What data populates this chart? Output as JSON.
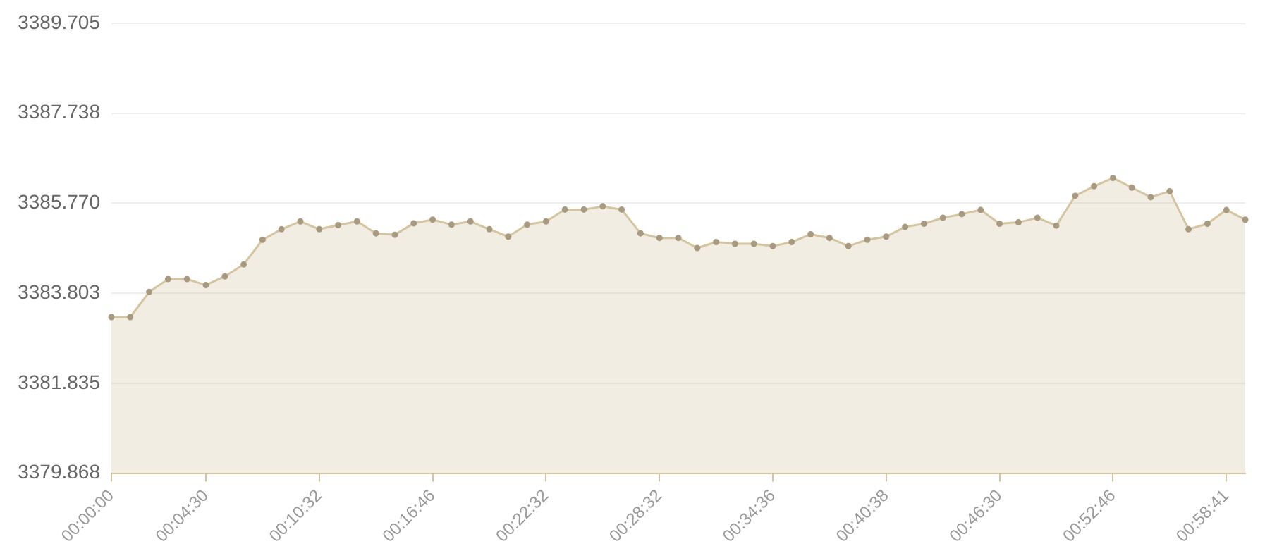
{
  "chart_data": {
    "type": "area",
    "categories": [
      "00:00:00",
      null,
      null,
      null,
      null,
      "00:04:30",
      null,
      null,
      null,
      null,
      null,
      "00:10:32",
      null,
      null,
      null,
      null,
      null,
      "00:16:46",
      null,
      null,
      null,
      null,
      null,
      "00:22:32",
      null,
      null,
      null,
      null,
      null,
      "00:28:32",
      null,
      null,
      null,
      null,
      null,
      "00:34:36",
      null,
      null,
      null,
      null,
      null,
      "00:40:38",
      null,
      null,
      null,
      null,
      null,
      "00:46:30",
      null,
      null,
      null,
      null,
      null,
      "00:52:46",
      null,
      null,
      null,
      null,
      null,
      "00:58:41",
      null
    ],
    "series": [
      {
        "color": "#d4c4a0",
        "values": [
          3383.28,
          3383.28,
          3383.83,
          3384.11,
          3384.11,
          3383.98,
          3384.17,
          3384.43,
          3384.97,
          3385.2,
          3385.37,
          3385.2,
          3385.29,
          3385.37,
          3385.11,
          3385.08,
          3385.33,
          3385.41,
          3385.3,
          3385.37,
          3385.2,
          3385.04,
          3385.3,
          3385.37,
          3385.63,
          3385.63,
          3385.7,
          3385.63,
          3385.11,
          3385.01,
          3385.01,
          3384.79,
          3384.92,
          3384.88,
          3384.88,
          3384.83,
          3384.92,
          3385.09,
          3385.01,
          3384.83,
          3384.97,
          3385.04,
          3385.25,
          3385.32,
          3385.45,
          3385.53,
          3385.62,
          3385.32,
          3385.35,
          3385.45,
          3385.28,
          3385.93,
          3386.14,
          3386.32,
          3386.11,
          3385.9,
          3386.03,
          3385.2,
          3385.32,
          3385.62,
          3385.41
        ]
      }
    ],
    "ylim": [
      3379.868,
      3389.705
    ],
    "yticks": [
      3379.868,
      3381.835,
      3383.803,
      {
        "value": 3385.77,
        "label": "3385.770"
      },
      3387.738,
      3389.705
    ],
    "grid": "y",
    "legend": false,
    "marker": "circle"
  }
}
